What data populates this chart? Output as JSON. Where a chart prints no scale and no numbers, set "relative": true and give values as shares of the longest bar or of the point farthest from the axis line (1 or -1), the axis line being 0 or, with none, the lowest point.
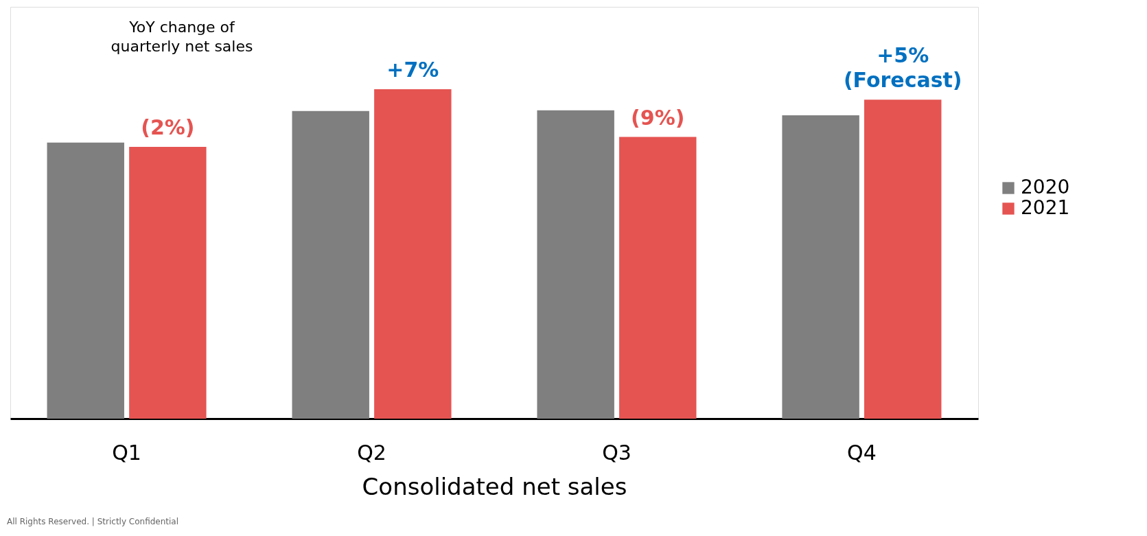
{
  "chart_data": {
    "type": "bar",
    "relative": true,
    "xlabel": "Consolidated net sales",
    "categories": [
      "Q1",
      "Q2",
      "Q3",
      "Q4"
    ],
    "series": [
      {
        "name": "2020",
        "color": "#7f7f7f",
        "values": [
          0.838,
          0.934,
          0.936,
          0.921
        ]
      },
      {
        "name": "2021",
        "color": "#e55451",
        "values": [
          0.825,
          1,
          0.855,
          0.968
        ]
      }
    ],
    "annotations": [
      "YoY change of\nquarterly net sales",
      "(2%)",
      "+7%",
      "(9%)",
      "+5%\n(Forecast)",
      "All Rights Reserved. | Strictly Confidential"
    ],
    "legend": "right",
    "grid": false
  }
}
